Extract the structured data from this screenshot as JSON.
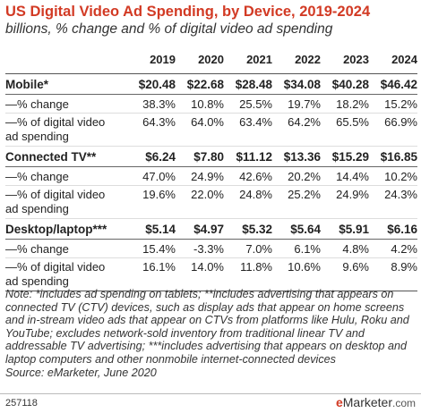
{
  "chart_data": {
    "type": "table",
    "title": "US Digital Video Ad Spending, by Device, 2019-2024",
    "subtitle": "billions, % change and % of digital video ad spending",
    "columns": [
      "2019",
      "2020",
      "2021",
      "2022",
      "2023",
      "2024"
    ],
    "rows": [
      {
        "label": "Mobile*",
        "values": [
          "$20.48",
          "$22.68",
          "$28.48",
          "$34.08",
          "$40.28",
          "$46.42"
        ]
      },
      {
        "label": "—% change",
        "values": [
          "38.3%",
          "10.8%",
          "25.5%",
          "19.7%",
          "18.2%",
          "15.2%"
        ]
      },
      {
        "label1": "—% of digital video",
        "label2": "ad spending",
        "values": [
          "64.3%",
          "64.0%",
          "63.4%",
          "64.2%",
          "65.5%",
          "66.9%"
        ]
      },
      {
        "label": "Connected TV**",
        "values": [
          "$6.24",
          "$7.80",
          "$11.12",
          "$13.36",
          "$15.29",
          "$16.85"
        ]
      },
      {
        "label": "—% change",
        "values": [
          "47.0%",
          "24.9%",
          "42.6%",
          "20.2%",
          "14.4%",
          "10.2%"
        ]
      },
      {
        "label1": "—% of digital video",
        "label2": "ad spending",
        "values": [
          "19.6%",
          "22.0%",
          "24.8%",
          "25.2%",
          "24.9%",
          "24.3%"
        ]
      },
      {
        "label": "Desktop/laptop***",
        "values": [
          "$5.14",
          "$4.97",
          "$5.32",
          "$5.64",
          "$5.91",
          "$6.16"
        ]
      },
      {
        "label": "—% change",
        "values": [
          "15.4%",
          "-3.3%",
          "7.0%",
          "6.1%",
          "4.8%",
          "4.2%"
        ]
      },
      {
        "label1": "—% of digital video",
        "label2": "ad spending",
        "values": [
          "16.1%",
          "14.0%",
          "11.8%",
          "10.6%",
          "9.6%",
          "8.9%"
        ]
      }
    ]
  },
  "note": "Note: *includes ad spending on tablets; **includes advertising that appears on connected TV (CTV) devices, such as display ads that appear on home screens and in-stream video ads that appear on CTVs from platforms like Hulu, Roku and YouTube; excludes network-sold inventory from traditional linear TV and addressable TV advertising; ***includes advertising that appears on desktop and laptop computers and other nonmobile internet-connected devices",
  "source": "Source: eMarketer, June 2020",
  "footer": {
    "id": "257118",
    "logo_prefix": "e",
    "logo_name": "Marketer",
    "logo_domain": ".com"
  },
  "colors": {
    "accent": "#d23a24"
  }
}
